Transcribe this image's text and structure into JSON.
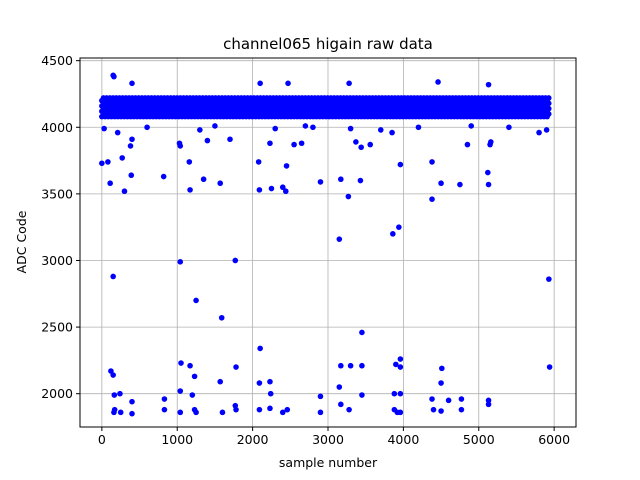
{
  "chart_data": {
    "type": "scatter",
    "title": "channel065 higain raw data",
    "xlabel": "sample number",
    "ylabel": "ADC Code",
    "xlim": [
      -290,
      6290
    ],
    "ylim": [
      1750,
      4520
    ],
    "xticks": [
      0,
      1000,
      2000,
      3000,
      4000,
      5000,
      6000
    ],
    "yticks": [
      2000,
      2500,
      3000,
      3500,
      4000,
      4500
    ],
    "grid": true,
    "marker_color": "#0000ff",
    "band": {
      "x_range": [
        0,
        5950
      ],
      "levels": [
        4080,
        4100,
        4120,
        4140,
        4160,
        4180,
        4200,
        4220
      ],
      "points_per_level": 140
    },
    "outliers": [
      [
        0,
        3730
      ],
      [
        80,
        3740
      ],
      [
        110,
        3580
      ],
      [
        150,
        2880
      ],
      [
        120,
        2170
      ],
      [
        150,
        2140
      ],
      [
        160,
        1860
      ],
      [
        170,
        1880
      ],
      [
        165,
        1990
      ],
      [
        240,
        2000
      ],
      [
        250,
        1860
      ],
      [
        270,
        3770
      ],
      [
        300,
        3520
      ],
      [
        380,
        3860
      ],
      [
        390,
        3640
      ],
      [
        400,
        3910
      ],
      [
        400,
        1940
      ],
      [
        400,
        1850
      ],
      [
        820,
        3630
      ],
      [
        830,
        1960
      ],
      [
        830,
        1880
      ],
      [
        1030,
        3880
      ],
      [
        1040,
        3860
      ],
      [
        1040,
        2990
      ],
      [
        1050,
        2230
      ],
      [
        1040,
        2020
      ],
      [
        1040,
        1860
      ],
      [
        1160,
        3740
      ],
      [
        1170,
        3530
      ],
      [
        1170,
        2210
      ],
      [
        1200,
        1990
      ],
      [
        1230,
        2130
      ],
      [
        1250,
        2700
      ],
      [
        1230,
        1880
      ],
      [
        1250,
        1860
      ],
      [
        1350,
        3610
      ],
      [
        1400,
        3900
      ],
      [
        1570,
        3580
      ],
      [
        1590,
        2570
      ],
      [
        1570,
        2090
      ],
      [
        1600,
        1860
      ],
      [
        1700,
        3910
      ],
      [
        1770,
        3000
      ],
      [
        1780,
        2200
      ],
      [
        1770,
        1910
      ],
      [
        1780,
        1880
      ],
      [
        2080,
        3740
      ],
      [
        2090,
        3530
      ],
      [
        2100,
        2340
      ],
      [
        2090,
        2080
      ],
      [
        2090,
        1880
      ],
      [
        2230,
        3880
      ],
      [
        2250,
        3540
      ],
      [
        2230,
        2090
      ],
      [
        2240,
        2000
      ],
      [
        2230,
        1890
      ],
      [
        2400,
        3550
      ],
      [
        2440,
        3520
      ],
      [
        2450,
        3710
      ],
      [
        2400,
        1860
      ],
      [
        2460,
        1880
      ],
      [
        2550,
        3870
      ],
      [
        2650,
        3880
      ],
      [
        2900,
        3590
      ],
      [
        2900,
        1980
      ],
      [
        2900,
        1860
      ],
      [
        3150,
        3160
      ],
      [
        3170,
        3610
      ],
      [
        3170,
        2210
      ],
      [
        3150,
        2050
      ],
      [
        3170,
        1920
      ],
      [
        3270,
        3480
      ],
      [
        3300,
        2210
      ],
      [
        3280,
        1880
      ],
      [
        3370,
        3890
      ],
      [
        3430,
        3600
      ],
      [
        3440,
        3850
      ],
      [
        3450,
        2460
      ],
      [
        3450,
        2210
      ],
      [
        3450,
        1990
      ],
      [
        3560,
        3870
      ],
      [
        3860,
        3200
      ],
      [
        3900,
        2220
      ],
      [
        3880,
        2000
      ],
      [
        3880,
        1880
      ],
      [
        3920,
        1860
      ],
      [
        3940,
        3250
      ],
      [
        3960,
        3720
      ],
      [
        3960,
        2260
      ],
      [
        3960,
        2200
      ],
      [
        3960,
        2000
      ],
      [
        3960,
        1860
      ],
      [
        4380,
        3460
      ],
      [
        4380,
        3740
      ],
      [
        4380,
        1960
      ],
      [
        4400,
        1880
      ],
      [
        4500,
        3580
      ],
      [
        4510,
        2190
      ],
      [
        4500,
        2080
      ],
      [
        4500,
        1870
      ],
      [
        4600,
        1950
      ],
      [
        4750,
        3570
      ],
      [
        4770,
        1960
      ],
      [
        4770,
        1880
      ],
      [
        4850,
        3870
      ],
      [
        5120,
        3660
      ],
      [
        5130,
        3570
      ],
      [
        5150,
        3870
      ],
      [
        5160,
        3890
      ],
      [
        5130,
        1950
      ],
      [
        5130,
        1920
      ],
      [
        5930,
        2860
      ],
      [
        5940,
        2200
      ],
      [
        150,
        4390
      ],
      [
        160,
        4380
      ],
      [
        2100,
        4330
      ],
      [
        2470,
        4330
      ],
      [
        3280,
        4330
      ],
      [
        4460,
        4340
      ],
      [
        5130,
        4320
      ],
      [
        400,
        4330
      ],
      [
        30,
        3990
      ],
      [
        210,
        3960
      ],
      [
        600,
        4000
      ],
      [
        1300,
        3980
      ],
      [
        2800,
        4000
      ],
      [
        3700,
        3980
      ],
      [
        4200,
        4000
      ],
      [
        5800,
        3960
      ],
      [
        5900,
        3980
      ],
      [
        1500,
        4010
      ],
      [
        2300,
        3990
      ],
      [
        3300,
        3990
      ],
      [
        4900,
        4010
      ],
      [
        5400,
        4000
      ],
      [
        2700,
        4010
      ],
      [
        3850,
        3960
      ]
    ]
  }
}
